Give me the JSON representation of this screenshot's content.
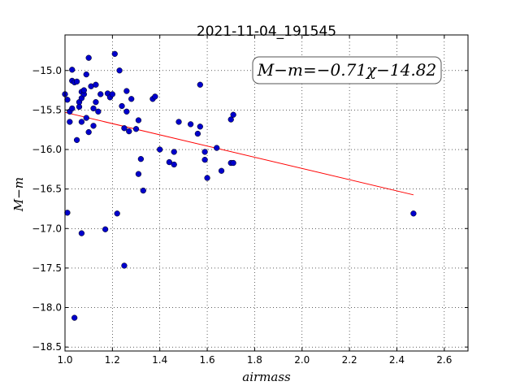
{
  "chart_data": {
    "type": "scatter",
    "title": "2021-11-04_191545",
    "xlabel": "airmass",
    "ylabel": "M−m",
    "xlim": [
      1.0,
      2.7
    ],
    "ylim": [
      -18.55,
      -14.55
    ],
    "x_ticks": [
      1.0,
      1.2,
      1.4,
      1.6,
      1.8,
      2.0,
      2.2,
      2.4,
      2.6
    ],
    "x_tick_labels": [
      "1.0",
      "1.2",
      "1.4",
      "1.6",
      "1.8",
      "2.0",
      "2.2",
      "2.4",
      "2.6"
    ],
    "y_ticks": [
      -15.0,
      -15.5,
      -16.0,
      -16.5,
      -17.0,
      -17.5,
      -18.0,
      -18.5
    ],
    "y_tick_labels": [
      "−15.0",
      "−15.5",
      "−16.0",
      "−16.5",
      "−17.0",
      "−17.5",
      "−18.0",
      "−18.5"
    ],
    "grid": true,
    "annotation": "M−m=−0.71χ−14.82",
    "fit": {
      "slope": -0.71,
      "intercept": -14.82,
      "x_range": [
        1.0,
        2.47
      ],
      "color": "#ff0000"
    },
    "point_color": "#0000cc",
    "points": [
      [
        1.0,
        -15.3
      ],
      [
        1.01,
        -15.37
      ],
      [
        1.01,
        -16.8
      ],
      [
        1.02,
        -15.52
      ],
      [
        1.02,
        -15.65
      ],
      [
        1.03,
        -14.99
      ],
      [
        1.03,
        -15.13
      ],
      [
        1.03,
        -15.48
      ],
      [
        1.04,
        -15.15
      ],
      [
        1.05,
        -15.14
      ],
      [
        1.04,
        -18.13
      ],
      [
        1.05,
        -15.88
      ],
      [
        1.06,
        -15.4
      ],
      [
        1.06,
        -15.46
      ],
      [
        1.07,
        -15.27
      ],
      [
        1.07,
        -15.35
      ],
      [
        1.07,
        -15.65
      ],
      [
        1.07,
        -17.06
      ],
      [
        1.08,
        -15.3
      ],
      [
        1.08,
        -15.25
      ],
      [
        1.09,
        -15.05
      ],
      [
        1.09,
        -15.6
      ],
      [
        1.1,
        -14.84
      ],
      [
        1.1,
        -15.78
      ],
      [
        1.11,
        -15.2
      ],
      [
        1.12,
        -15.48
      ],
      [
        1.12,
        -15.7
      ],
      [
        1.13,
        -15.4
      ],
      [
        1.13,
        -15.18
      ],
      [
        1.14,
        -15.52
      ],
      [
        1.15,
        -15.3
      ],
      [
        1.17,
        -17.01
      ],
      [
        1.18,
        -15.29
      ],
      [
        1.19,
        -15.34
      ],
      [
        1.2,
        -15.3
      ],
      [
        1.21,
        -14.79
      ],
      [
        1.22,
        -16.81
      ],
      [
        1.23,
        -15.0
      ],
      [
        1.24,
        -15.45
      ],
      [
        1.25,
        -15.73
      ],
      [
        1.25,
        -17.47
      ],
      [
        1.26,
        -15.52
      ],
      [
        1.26,
        -15.26
      ],
      [
        1.27,
        -15.77
      ],
      [
        1.28,
        -15.36
      ],
      [
        1.3,
        -15.74
      ],
      [
        1.31,
        -15.63
      ],
      [
        1.31,
        -16.31
      ],
      [
        1.32,
        -16.12
      ],
      [
        1.33,
        -16.52
      ],
      [
        1.37,
        -15.36
      ],
      [
        1.38,
        -15.33
      ],
      [
        1.4,
        -16.0
      ],
      [
        1.44,
        -16.16
      ],
      [
        1.46,
        -16.19
      ],
      [
        1.46,
        -16.03
      ],
      [
        1.48,
        -15.65
      ],
      [
        1.53,
        -15.68
      ],
      [
        1.56,
        -15.8
      ],
      [
        1.57,
        -15.71
      ],
      [
        1.57,
        -15.18
      ],
      [
        1.59,
        -16.03
      ],
      [
        1.59,
        -16.13
      ],
      [
        1.6,
        -16.36
      ],
      [
        1.64,
        -15.98
      ],
      [
        1.66,
        -16.27
      ],
      [
        1.7,
        -15.62
      ],
      [
        1.7,
        -16.17
      ],
      [
        1.71,
        -16.17
      ],
      [
        1.71,
        -15.56
      ],
      [
        2.47,
        -16.81
      ]
    ]
  }
}
